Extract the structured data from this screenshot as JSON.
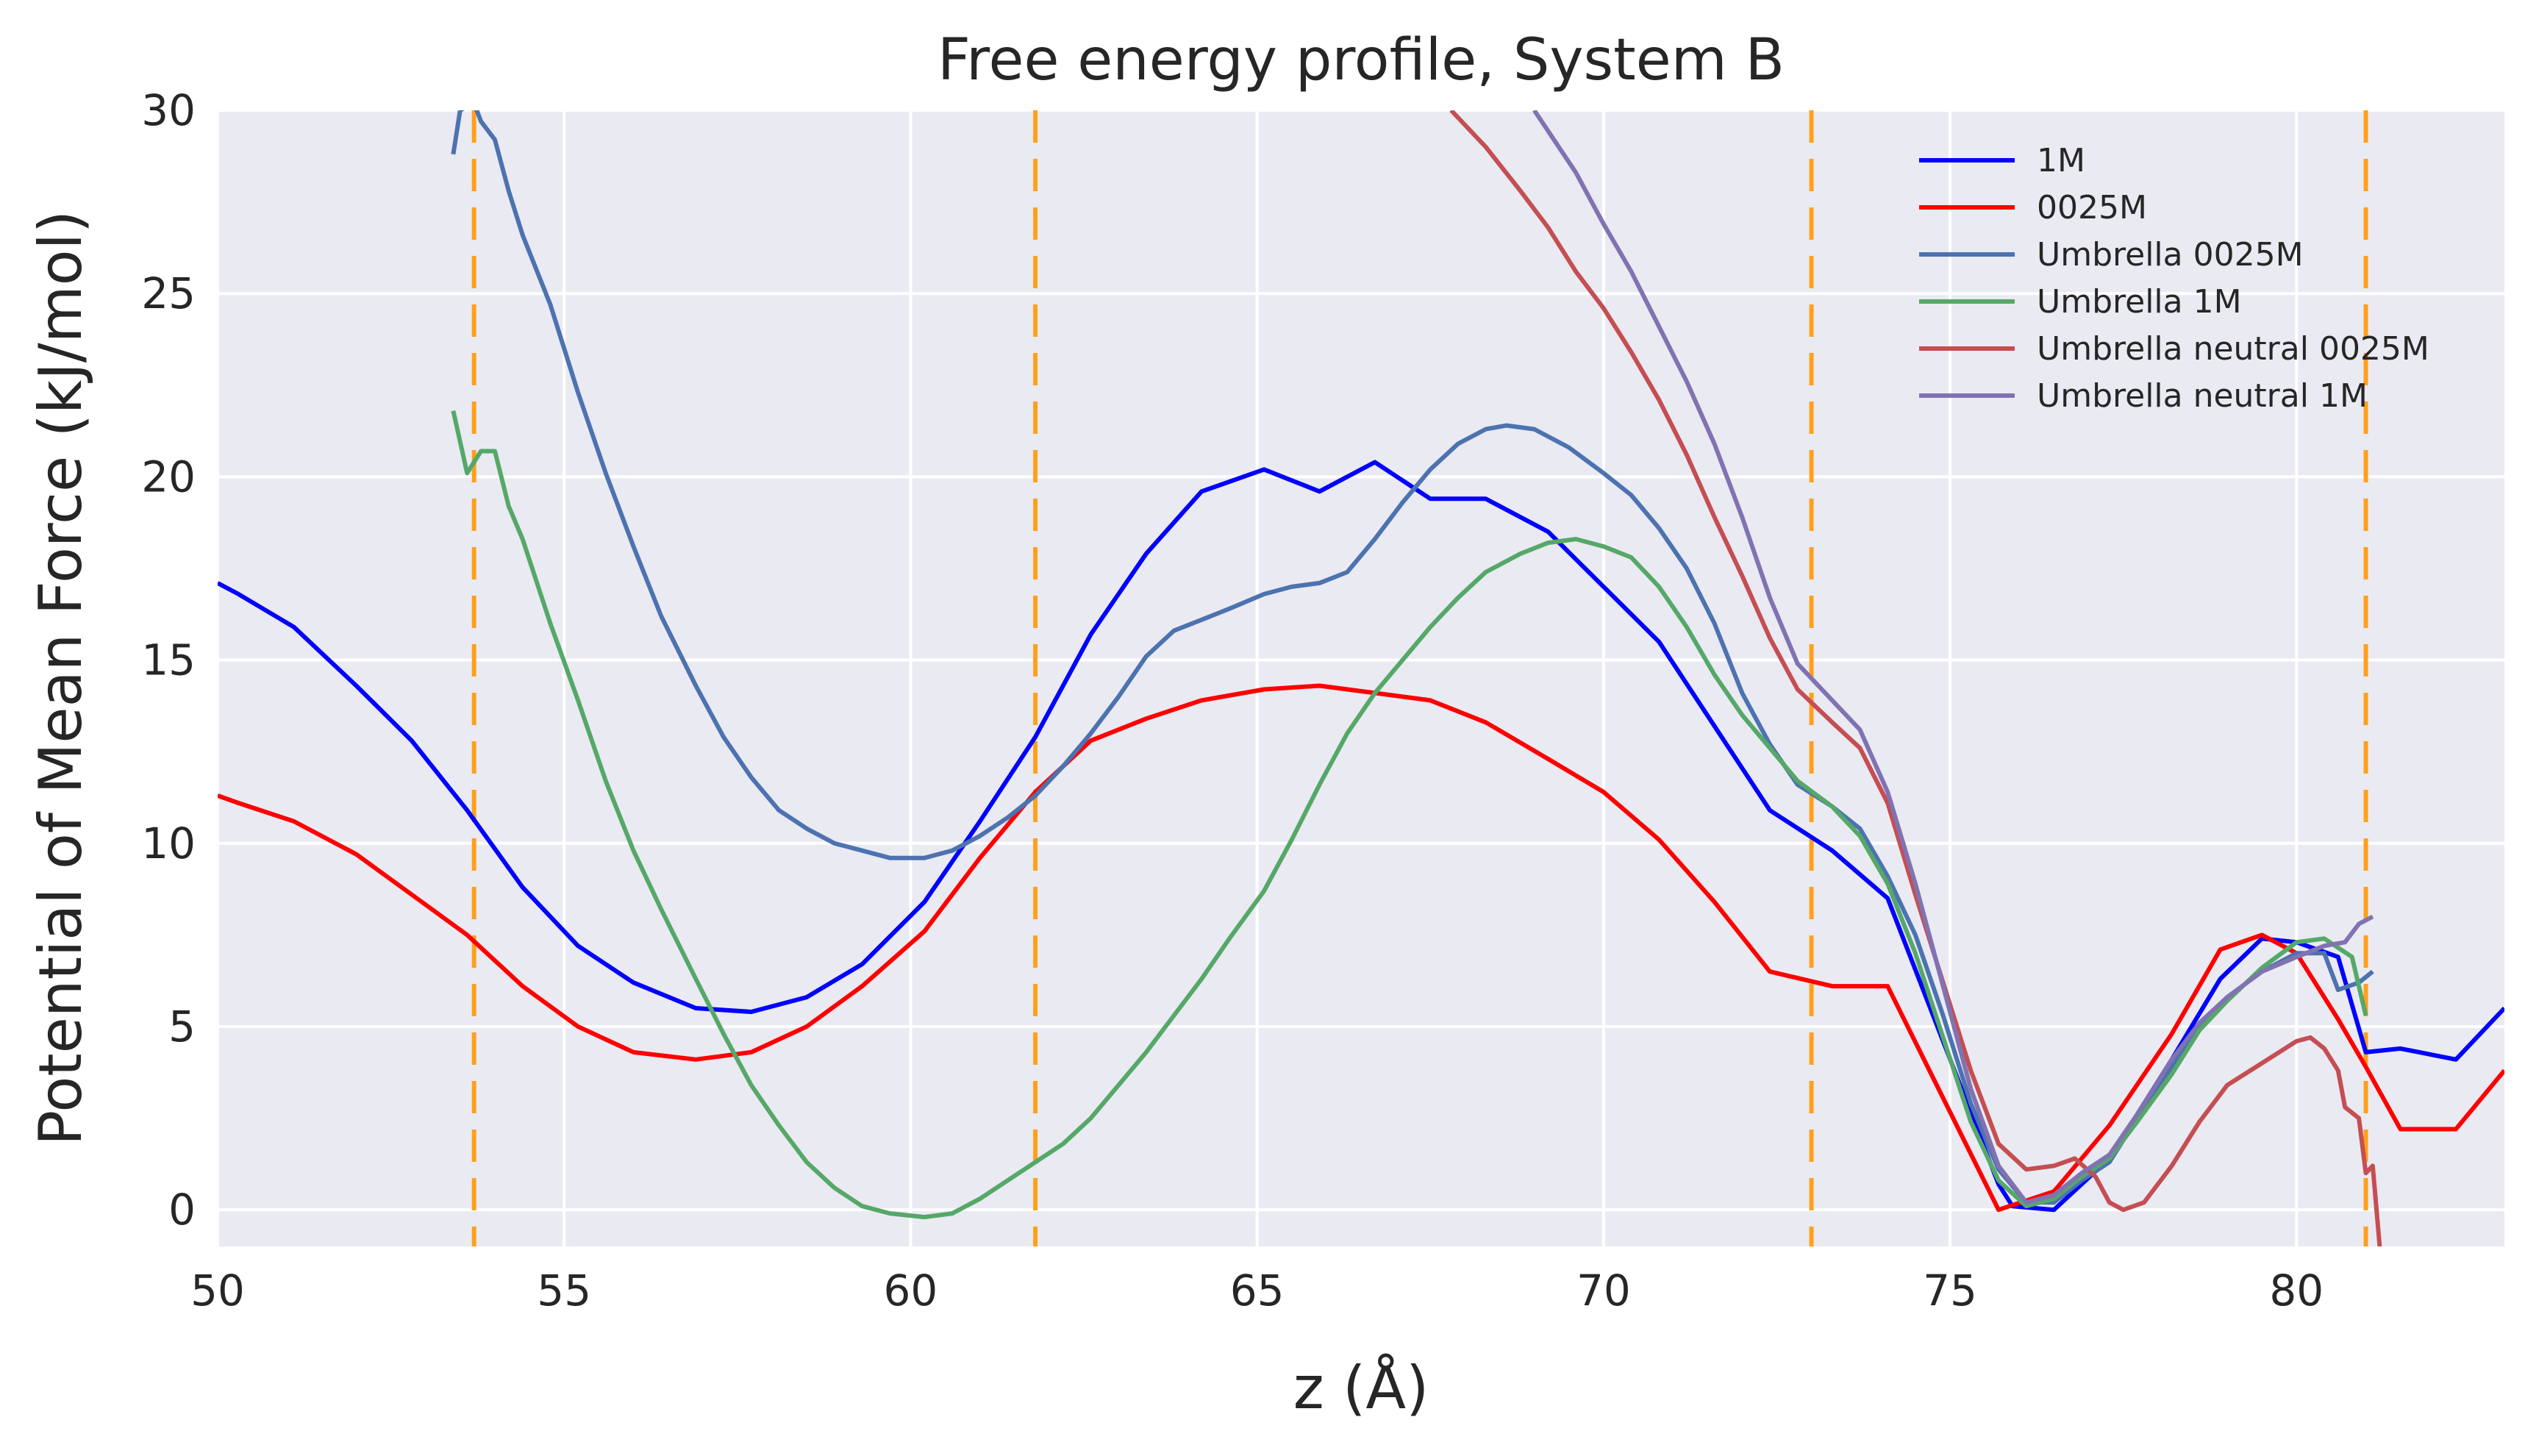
{
  "chart_data": {
    "type": "line",
    "title": "Free energy profile, System B",
    "xlabel": "z (Å)",
    "ylabel": "Potential of Mean Force (kJ/mol)",
    "xlim": [
      50,
      83
    ],
    "ylim": [
      -1,
      30
    ],
    "xticks": [
      50,
      55,
      60,
      65,
      70,
      75,
      80
    ],
    "yticks": [
      0,
      5,
      10,
      15,
      20,
      25,
      30
    ],
    "grid": true,
    "legend_position": "top-right",
    "vlines": {
      "x": [
        53.7,
        61.8,
        73.0,
        81.0
      ],
      "color": "#ffa01c",
      "style": "dashed"
    },
    "series": [
      {
        "name": "1M",
        "color": "#0000ff",
        "points": [
          [
            50,
            17.1
          ],
          [
            50.3,
            16.8
          ],
          [
            51.1,
            15.9
          ],
          [
            52,
            14.3
          ],
          [
            52.8,
            12.8
          ],
          [
            53.6,
            10.9
          ],
          [
            54.4,
            8.8
          ],
          [
            55.2,
            7.2
          ],
          [
            56,
            6.2
          ],
          [
            56.9,
            5.5
          ],
          [
            57.7,
            5.4
          ],
          [
            58.5,
            5.8
          ],
          [
            59.3,
            6.7
          ],
          [
            60.2,
            8.4
          ],
          [
            61,
            10.6
          ],
          [
            61.8,
            12.9
          ],
          [
            62.6,
            15.7
          ],
          [
            63.4,
            17.9
          ],
          [
            64.2,
            19.6
          ],
          [
            65.1,
            20.2
          ],
          [
            65.9,
            19.6
          ],
          [
            66.7,
            20.4
          ],
          [
            67.5,
            19.4
          ],
          [
            68.3,
            19.4
          ],
          [
            69.2,
            18.5
          ],
          [
            70,
            17
          ],
          [
            70.8,
            15.5
          ],
          [
            71.6,
            13.2
          ],
          [
            72.4,
            10.9
          ],
          [
            73.3,
            9.8
          ],
          [
            74.1,
            8.5
          ],
          [
            75.7,
            0.7
          ],
          [
            75.9,
            0.1
          ],
          [
            76.5,
            0
          ],
          [
            77.3,
            1.4
          ],
          [
            78.2,
            4.1
          ],
          [
            78.9,
            6.3
          ],
          [
            79.5,
            7.4
          ],
          [
            80,
            7.3
          ],
          [
            80.6,
            6.9
          ],
          [
            81,
            4.3
          ],
          [
            81.5,
            4.4
          ],
          [
            82.3,
            4.1
          ],
          [
            83,
            5.5
          ]
        ]
      },
      {
        "name": "0025M",
        "color": "#ff0000",
        "points": [
          [
            50,
            11.3
          ],
          [
            50.3,
            11.1
          ],
          [
            51.1,
            10.6
          ],
          [
            52,
            9.7
          ],
          [
            52.8,
            8.6
          ],
          [
            53.6,
            7.5
          ],
          [
            54.4,
            6.1
          ],
          [
            55.2,
            5
          ],
          [
            56,
            4.3
          ],
          [
            56.9,
            4.1
          ],
          [
            57.7,
            4.3
          ],
          [
            58.5,
            5
          ],
          [
            59.3,
            6.1
          ],
          [
            60.2,
            7.6
          ],
          [
            61,
            9.6
          ],
          [
            61.8,
            11.4
          ],
          [
            62.6,
            12.8
          ],
          [
            63.4,
            13.4
          ],
          [
            64.2,
            13.9
          ],
          [
            65.1,
            14.2
          ],
          [
            65.9,
            14.3
          ],
          [
            66.7,
            14.1
          ],
          [
            67.5,
            13.9
          ],
          [
            68.3,
            13.3
          ],
          [
            69.2,
            12.3
          ],
          [
            70,
            11.4
          ],
          [
            70.8,
            10.1
          ],
          [
            71.6,
            8.4
          ],
          [
            72.4,
            6.5
          ],
          [
            73.3,
            6.1
          ],
          [
            74.1,
            6.1
          ],
          [
            75.7,
            0
          ],
          [
            76.5,
            0.5
          ],
          [
            77.3,
            2.3
          ],
          [
            78.2,
            4.8
          ],
          [
            78.9,
            7.1
          ],
          [
            79.5,
            7.5
          ],
          [
            80,
            7
          ],
          [
            80.6,
            5.2
          ],
          [
            81,
            3.9
          ],
          [
            81.5,
            2.2
          ],
          [
            82.3,
            2.2
          ],
          [
            83,
            3.8
          ]
        ]
      },
      {
        "name": "Umbrella  0025M",
        "color": "#4c72b0",
        "points": [
          [
            53.4,
            28.8
          ],
          [
            53.5,
            30
          ],
          [
            53.7,
            30.2
          ],
          [
            53.8,
            29.7
          ],
          [
            54,
            29.2
          ],
          [
            54.2,
            27.8
          ],
          [
            54.4,
            26.6
          ],
          [
            54.8,
            24.7
          ],
          [
            55.2,
            22.3
          ],
          [
            55.6,
            20.1
          ],
          [
            56,
            18.1
          ],
          [
            56.4,
            16.2
          ],
          [
            56.9,
            14.3
          ],
          [
            57.3,
            12.9
          ],
          [
            57.7,
            11.8
          ],
          [
            58.1,
            10.9
          ],
          [
            58.5,
            10.4
          ],
          [
            58.9,
            10
          ],
          [
            59.3,
            9.8
          ],
          [
            59.7,
            9.6
          ],
          [
            60.2,
            9.6
          ],
          [
            60.6,
            9.8
          ],
          [
            61,
            10.2
          ],
          [
            61.4,
            10.7
          ],
          [
            61.8,
            11.3
          ],
          [
            62.2,
            12.1
          ],
          [
            62.6,
            13
          ],
          [
            63,
            14
          ],
          [
            63.4,
            15.1
          ],
          [
            63.8,
            15.8
          ],
          [
            64.2,
            16.1
          ],
          [
            64.6,
            16.4
          ],
          [
            65.1,
            16.8
          ],
          [
            65.5,
            17
          ],
          [
            65.9,
            17.1
          ],
          [
            66.3,
            17.4
          ],
          [
            66.7,
            18.3
          ],
          [
            67.1,
            19.3
          ],
          [
            67.5,
            20.2
          ],
          [
            67.9,
            20.9
          ],
          [
            68.3,
            21.3
          ],
          [
            68.6,
            21.4
          ],
          [
            69,
            21.3
          ],
          [
            69.5,
            20.8
          ],
          [
            70,
            20.1
          ],
          [
            70.4,
            19.5
          ],
          [
            70.8,
            18.6
          ],
          [
            71.2,
            17.5
          ],
          [
            71.6,
            16
          ],
          [
            72,
            14.1
          ],
          [
            72.4,
            12.7
          ],
          [
            72.8,
            11.6
          ],
          [
            73.3,
            11
          ],
          [
            73.7,
            10.4
          ],
          [
            74.1,
            9.1
          ],
          [
            74.5,
            7.5
          ],
          [
            74.9,
            5.3
          ],
          [
            75.3,
            2.9
          ],
          [
            75.7,
            1.1
          ],
          [
            76.1,
            0.2
          ],
          [
            76.5,
            0.2
          ],
          [
            76.9,
            0.8
          ],
          [
            77.3,
            1.3
          ],
          [
            77.7,
            2.5
          ],
          [
            78.2,
            3.9
          ],
          [
            78.6,
            5
          ],
          [
            79,
            5.8
          ],
          [
            79.5,
            6.5
          ],
          [
            80,
            7
          ],
          [
            80.4,
            7
          ],
          [
            80.6,
            6
          ],
          [
            80.9,
            6.2
          ],
          [
            81.1,
            6.5
          ]
        ]
      },
      {
        "name": "Umbrella  1M",
        "color": "#55a868",
        "points": [
          [
            53.4,
            21.8
          ],
          [
            53.6,
            20.1
          ],
          [
            53.8,
            20.7
          ],
          [
            54,
            20.7
          ],
          [
            54.2,
            19.2
          ],
          [
            54.4,
            18.3
          ],
          [
            54.8,
            16
          ],
          [
            55.2,
            13.9
          ],
          [
            55.6,
            11.7
          ],
          [
            56,
            9.8
          ],
          [
            56.4,
            8.2
          ],
          [
            56.9,
            6.3
          ],
          [
            57.3,
            4.8
          ],
          [
            57.7,
            3.4
          ],
          [
            58.1,
            2.3
          ],
          [
            58.5,
            1.3
          ],
          [
            58.9,
            0.6
          ],
          [
            59.3,
            0.1
          ],
          [
            59.7,
            -0.1
          ],
          [
            60.2,
            -0.2
          ],
          [
            60.6,
            -0.1
          ],
          [
            61,
            0.3
          ],
          [
            61.4,
            0.8
          ],
          [
            61.8,
            1.3
          ],
          [
            62.2,
            1.8
          ],
          [
            62.6,
            2.5
          ],
          [
            63,
            3.4
          ],
          [
            63.4,
            4.3
          ],
          [
            63.8,
            5.3
          ],
          [
            64.2,
            6.3
          ],
          [
            64.6,
            7.4
          ],
          [
            65.1,
            8.7
          ],
          [
            65.5,
            10.1
          ],
          [
            65.9,
            11.6
          ],
          [
            66.3,
            13
          ],
          [
            66.7,
            14.1
          ],
          [
            67.1,
            15
          ],
          [
            67.5,
            15.9
          ],
          [
            67.9,
            16.7
          ],
          [
            68.3,
            17.4
          ],
          [
            68.8,
            17.9
          ],
          [
            69.2,
            18.2
          ],
          [
            69.6,
            18.3
          ],
          [
            70,
            18.1
          ],
          [
            70.4,
            17.8
          ],
          [
            70.8,
            17
          ],
          [
            71.2,
            15.9
          ],
          [
            71.6,
            14.6
          ],
          [
            72,
            13.5
          ],
          [
            72.4,
            12.6
          ],
          [
            72.8,
            11.7
          ],
          [
            73.3,
            11
          ],
          [
            73.7,
            10.2
          ],
          [
            74.1,
            8.9
          ],
          [
            74.5,
            7
          ],
          [
            74.9,
            4.7
          ],
          [
            75.3,
            2.4
          ],
          [
            75.7,
            0.8
          ],
          [
            76.1,
            0.1
          ],
          [
            76.5,
            0.3
          ],
          [
            76.9,
            0.9
          ],
          [
            77.3,
            1.4
          ],
          [
            77.7,
            2.4
          ],
          [
            78.2,
            3.7
          ],
          [
            78.6,
            4.9
          ],
          [
            79,
            5.7
          ],
          [
            79.5,
            6.6
          ],
          [
            80,
            7.3
          ],
          [
            80.4,
            7.4
          ],
          [
            80.8,
            6.9
          ],
          [
            81,
            5.3
          ]
        ]
      },
      {
        "name": "Umbrella neutral 0025M",
        "color": "#c44e52",
        "points": [
          [
            67.8,
            30
          ],
          [
            68.3,
            29
          ],
          [
            68.8,
            27.8
          ],
          [
            69.2,
            26.8
          ],
          [
            69.6,
            25.6
          ],
          [
            70,
            24.6
          ],
          [
            70.4,
            23.4
          ],
          [
            70.8,
            22.1
          ],
          [
            71.2,
            20.6
          ],
          [
            71.6,
            18.9
          ],
          [
            72,
            17.3
          ],
          [
            72.4,
            15.6
          ],
          [
            72.8,
            14.2
          ],
          [
            73.3,
            13.3
          ],
          [
            73.7,
            12.6
          ],
          [
            74.1,
            11.1
          ],
          [
            74.5,
            8.6
          ],
          [
            74.9,
            6.2
          ],
          [
            75.3,
            3.8
          ],
          [
            75.7,
            1.8
          ],
          [
            76.1,
            1.1
          ],
          [
            76.5,
            1.2
          ],
          [
            76.8,
            1.4
          ],
          [
            77.1,
            0.9
          ],
          [
            77.3,
            0.2
          ],
          [
            77.5,
            0
          ],
          [
            77.8,
            0.2
          ],
          [
            78.2,
            1.2
          ],
          [
            78.6,
            2.4
          ],
          [
            79,
            3.4
          ],
          [
            79.5,
            4
          ],
          [
            80,
            4.6
          ],
          [
            80.2,
            4.7
          ],
          [
            80.4,
            4.4
          ],
          [
            80.6,
            3.8
          ],
          [
            80.7,
            2.8
          ],
          [
            80.9,
            2.5
          ],
          [
            81,
            1
          ],
          [
            81.1,
            1.2
          ],
          [
            81.2,
            -1
          ]
        ]
      },
      {
        "name": "Umbrella neutral 1M",
        "color": "#8172b2",
        "points": [
          [
            69,
            30
          ],
          [
            69.6,
            28.3
          ],
          [
            70,
            26.9
          ],
          [
            70.4,
            25.6
          ],
          [
            70.8,
            24.1
          ],
          [
            71.2,
            22.6
          ],
          [
            71.6,
            20.9
          ],
          [
            72,
            18.9
          ],
          [
            72.4,
            16.7
          ],
          [
            72.8,
            14.9
          ],
          [
            73.3,
            13.9
          ],
          [
            73.7,
            13.1
          ],
          [
            74.1,
            11.4
          ],
          [
            74.5,
            8.9
          ],
          [
            74.9,
            6.1
          ],
          [
            75.3,
            3.3
          ],
          [
            75.7,
            1.2
          ],
          [
            76.1,
            0.2
          ],
          [
            76.5,
            0.4
          ],
          [
            76.9,
            1
          ],
          [
            77.3,
            1.5
          ],
          [
            77.7,
            2.6
          ],
          [
            78.2,
            4.1
          ],
          [
            78.6,
            5.1
          ],
          [
            79,
            5.8
          ],
          [
            79.5,
            6.5
          ],
          [
            80,
            6.9
          ],
          [
            80.4,
            7.2
          ],
          [
            80.7,
            7.3
          ],
          [
            80.9,
            7.8
          ],
          [
            81.1,
            8
          ]
        ]
      }
    ]
  }
}
